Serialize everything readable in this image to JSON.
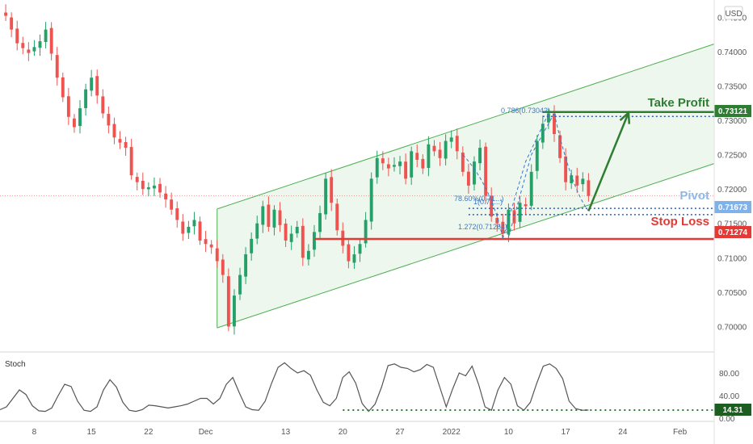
{
  "currency": "USD",
  "labels": {
    "take_profit": "Take Profit",
    "pivot": "Pivot",
    "stop_loss": "Stop Loss",
    "stoch": "Stoch"
  },
  "colors": {
    "up": "#26a069",
    "down": "#ef5350",
    "channel": "#4caf50",
    "channel_fill": "#4caf50",
    "take_profit": "#2e7d32",
    "pivot": "#90b8e6",
    "pivot_tag": "#7fb2ea",
    "stop_loss": "#e53935",
    "fib": "#3d78c2",
    "stoch_line": "#555555",
    "stoch_dotted": "#2e7d32"
  },
  "chart_data": [
    {
      "type": "candlestick",
      "title": "",
      "y_ticks": [
        0.7,
        0.705,
        0.71,
        0.715,
        0.72,
        0.725,
        0.73,
        0.735,
        0.74,
        0.745
      ],
      "y_tick_labels": [
        "0.70000",
        "0.70500",
        "0.71000",
        "0.71500",
        "0.72000",
        "0.72500",
        "0.73000",
        "0.73500",
        "0.74000",
        "0.74500"
      ],
      "ylim": [
        0.697,
        0.7475
      ],
      "x_tick_labels": [
        "8",
        "15",
        "22",
        "Dec",
        "13",
        "20",
        "27",
        "2022",
        "10",
        "17",
        "24",
        "Feb"
      ],
      "x_tick_index": [
        6,
        16,
        26,
        36,
        50,
        60,
        70,
        79,
        89,
        99,
        109,
        119
      ],
      "x_domain": [
        0,
        125
      ],
      "price_series": [
        {
          "i": 0,
          "c": 0.7455
        },
        {
          "i": 1,
          "c": 0.7452
        },
        {
          "i": 3,
          "c": 0.7412
        },
        {
          "i": 5,
          "c": 0.7398
        },
        {
          "i": 7,
          "c": 0.7415
        },
        {
          "i": 8,
          "c": 0.7432
        },
        {
          "i": 10,
          "c": 0.7362
        },
        {
          "i": 12,
          "c": 0.7305
        },
        {
          "i": 13,
          "c": 0.729
        },
        {
          "i": 15,
          "c": 0.7345
        },
        {
          "i": 16,
          "c": 0.7362
        },
        {
          "i": 18,
          "c": 0.731
        },
        {
          "i": 20,
          "c": 0.7275
        },
        {
          "i": 22,
          "c": 0.726
        },
        {
          "i": 23,
          "c": 0.722
        },
        {
          "i": 25,
          "c": 0.72
        },
        {
          "i": 27,
          "c": 0.7205
        },
        {
          "i": 29,
          "c": 0.7185
        },
        {
          "i": 31,
          "c": 0.7155
        },
        {
          "i": 32,
          "c": 0.7135
        },
        {
          "i": 34,
          "c": 0.7155
        },
        {
          "i": 35,
          "c": 0.7125
        },
        {
          "i": 37,
          "c": 0.7115
        },
        {
          "i": 39,
          "c": 0.7075
        },
        {
          "i": 40,
          "c": 0.7
        },
        {
          "i": 41,
          "c": 0.7045
        },
        {
          "i": 43,
          "c": 0.7105
        },
        {
          "i": 45,
          "c": 0.715
        },
        {
          "i": 46,
          "c": 0.7175
        },
        {
          "i": 47,
          "c": 0.7145
        },
        {
          "i": 48,
          "c": 0.717
        },
        {
          "i": 50,
          "c": 0.7125
        },
        {
          "i": 52,
          "c": 0.7145
        },
        {
          "i": 53,
          "c": 0.71
        },
        {
          "i": 54,
          "c": 0.711
        },
        {
          "i": 56,
          "c": 0.7165
        },
        {
          "i": 57,
          "c": 0.7215
        },
        {
          "i": 58,
          "c": 0.718
        },
        {
          "i": 59,
          "c": 0.714
        },
        {
          "i": 61,
          "c": 0.7095
        },
        {
          "i": 62,
          "c": 0.7105
        },
        {
          "i": 63,
          "c": 0.712
        },
        {
          "i": 64,
          "c": 0.7155
        },
        {
          "i": 65,
          "c": 0.7215
        },
        {
          "i": 66,
          "c": 0.7245
        },
        {
          "i": 68,
          "c": 0.723
        },
        {
          "i": 70,
          "c": 0.724
        },
        {
          "i": 71,
          "c": 0.7215
        },
        {
          "i": 72,
          "c": 0.7255
        },
        {
          "i": 74,
          "c": 0.723
        },
        {
          "i": 75,
          "c": 0.7265
        },
        {
          "i": 77,
          "c": 0.7245
        },
        {
          "i": 78,
          "c": 0.727
        },
        {
          "i": 79,
          "c": 0.7275
        },
        {
          "i": 80,
          "c": 0.7255
        },
        {
          "i": 81,
          "c": 0.7225
        },
        {
          "i": 82,
          "c": 0.7205
        },
        {
          "i": 83,
          "c": 0.724
        },
        {
          "i": 84,
          "c": 0.726
        },
        {
          "i": 85,
          "c": 0.719
        },
        {
          "i": 86,
          "c": 0.716
        },
        {
          "i": 87,
          "c": 0.715
        },
        {
          "i": 88,
          "c": 0.7135
        },
        {
          "i": 89,
          "c": 0.717
        },
        {
          "i": 90,
          "c": 0.715
        },
        {
          "i": 91,
          "c": 0.718
        },
        {
          "i": 92,
          "c": 0.7175
        },
        {
          "i": 93,
          "c": 0.7225
        },
        {
          "i": 94,
          "c": 0.727
        },
        {
          "i": 95,
          "c": 0.7295
        },
        {
          "i": 96,
          "c": 0.731
        },
        {
          "i": 97,
          "c": 0.728
        },
        {
          "i": 98,
          "c": 0.7245
        },
        {
          "i": 99,
          "c": 0.721
        },
        {
          "i": 100,
          "c": 0.722
        },
        {
          "i": 101,
          "c": 0.7205
        },
        {
          "i": 102,
          "c": 0.7215
        },
        {
          "i": 103,
          "c": 0.719
        }
      ],
      "channel": {
        "lower": [
          [
            38,
            0.6998
          ],
          [
            125,
            0.7237
          ]
        ],
        "upper": [
          [
            38,
            0.7171
          ],
          [
            125,
            0.7411
          ]
        ]
      },
      "take_profit": {
        "value": 0.73121,
        "label": "0.73121",
        "dotted": 0.73056,
        "from_index": 95
      },
      "pivot": {
        "value": 0.71673,
        "label": "0.71673",
        "upper": 0.71718,
        "lower": 0.71628,
        "from_index": 82
      },
      "stop_loss": {
        "value": 0.71274,
        "label": "0.71274",
        "from_index": 55
      },
      "last_price_line": 0.719,
      "fib_labels": [
        "0.786(0.73042)",
        "78.60%(0.71...)",
        "1(0.71...)",
        "1.272(0.71264)"
      ],
      "arrow": {
        "from": [
          103,
          0.7168
        ],
        "to": [
          110,
          0.7311
        ]
      }
    },
    {
      "type": "line",
      "title": "Stoch",
      "y_ticks": [
        0,
        40,
        80
      ],
      "y_tick_labels": [
        "0.00",
        "40.00",
        "80.00"
      ],
      "ylim": [
        0,
        100
      ],
      "current": 14.31,
      "current_label": "14.31",
      "values": [
        15,
        20,
        35,
        50,
        42,
        22,
        13,
        12,
        18,
        40,
        60,
        56,
        30,
        14,
        12,
        20,
        50,
        68,
        55,
        28,
        14,
        12,
        15,
        23,
        22,
        20,
        18,
        20,
        22,
        25,
        30,
        35,
        35,
        25,
        35,
        60,
        72,
        45,
        20,
        15,
        14,
        30,
        62,
        90,
        98,
        88,
        80,
        84,
        76,
        50,
        28,
        22,
        35,
        72,
        82,
        62,
        26,
        12,
        25,
        55,
        93,
        96,
        90,
        88,
        82,
        86,
        95,
        90,
        55,
        20,
        52,
        80,
        75,
        92,
        60,
        20,
        14,
        50,
        72,
        60,
        22,
        14,
        28,
        62,
        92,
        96,
        88,
        70,
        30,
        17,
        14,
        14.31
      ]
    }
  ]
}
